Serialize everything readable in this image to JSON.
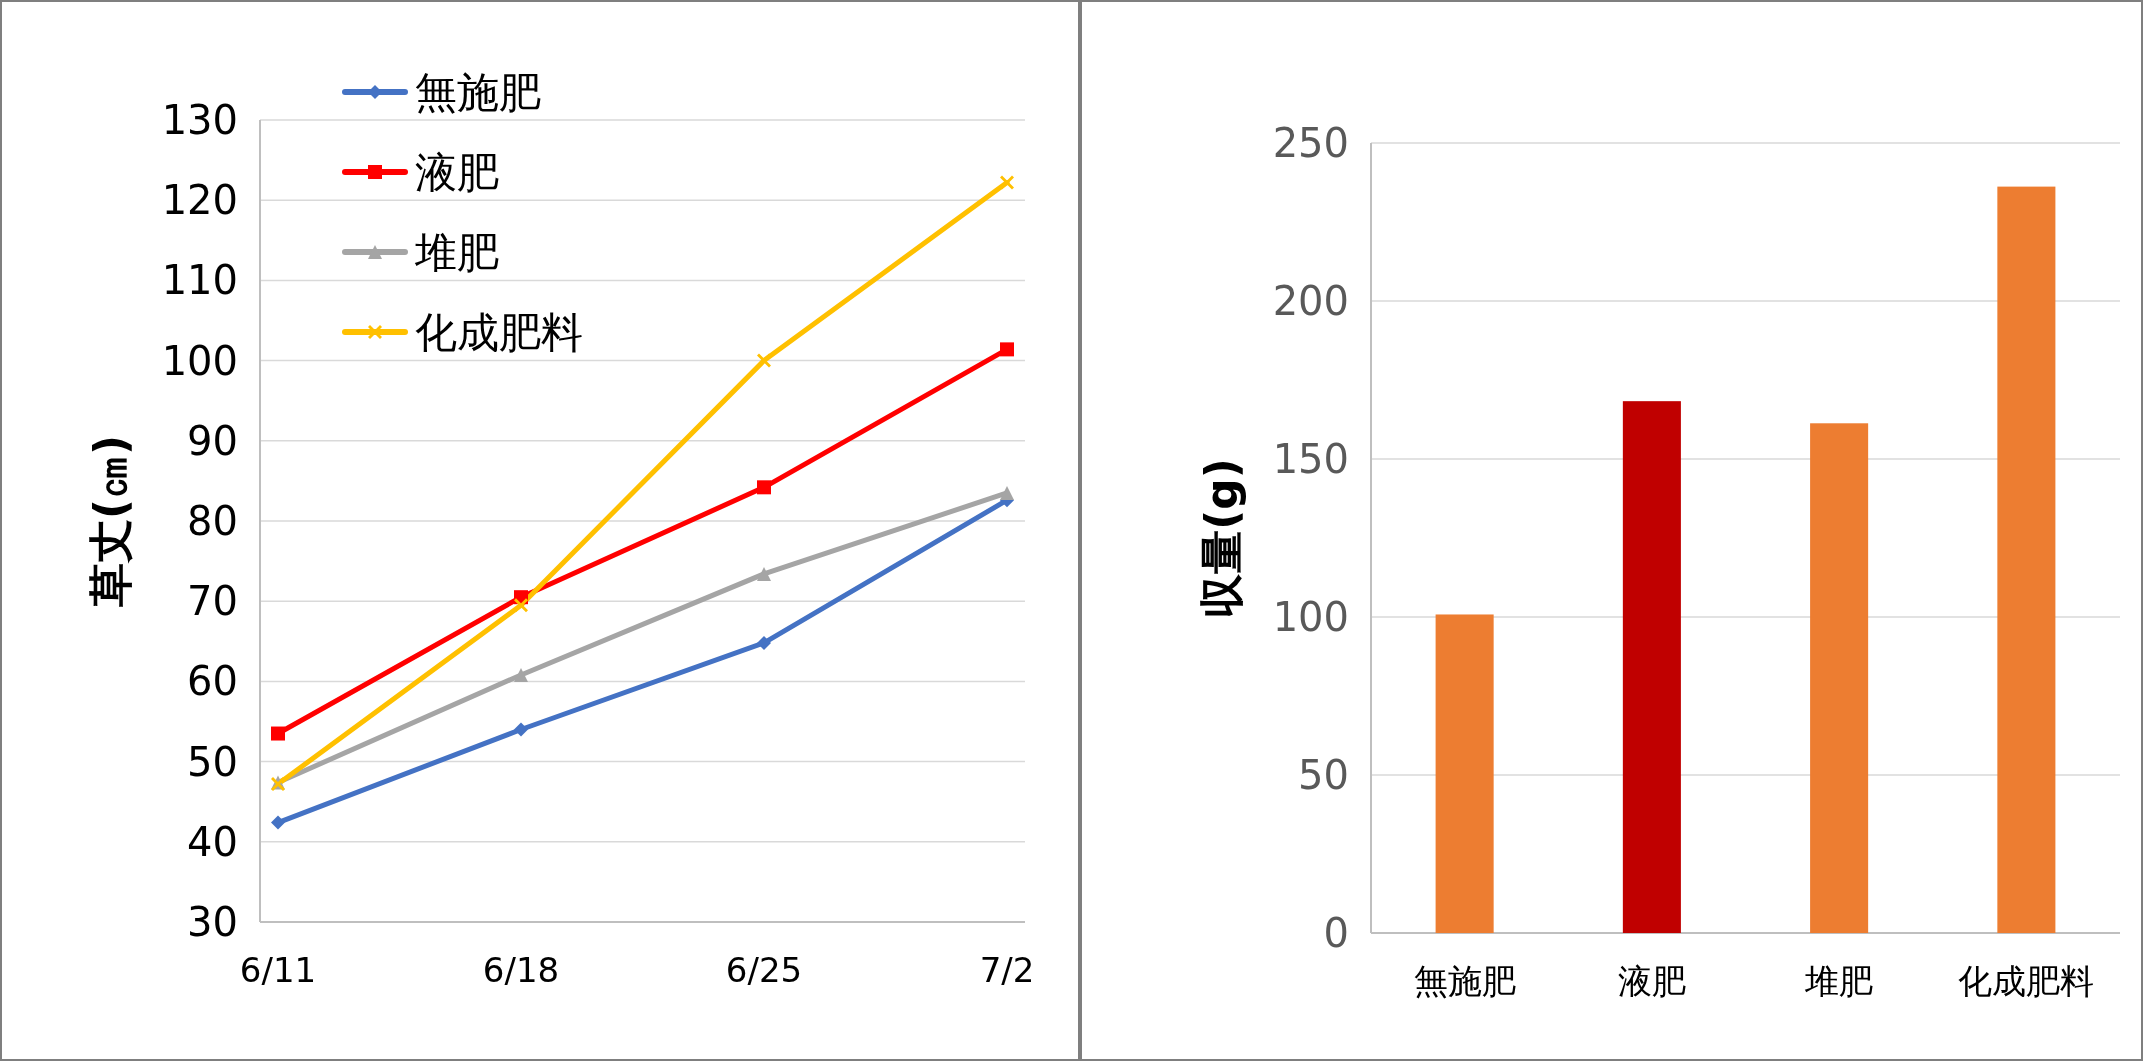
{
  "chart_data": [
    {
      "type": "line",
      "ylabel": "草丈(㎝)",
      "categories": [
        "6/11",
        "6/18",
        "6/25",
        "7/2"
      ],
      "ylim": [
        30,
        130
      ],
      "yticks": [
        30,
        40,
        50,
        60,
        70,
        80,
        90,
        100,
        110,
        120,
        130
      ],
      "grid": "y",
      "legend": "top left",
      "series": [
        {
          "name": "無施肥",
          "color": "#4472c4",
          "marker": "diamond",
          "values": [
            42.4,
            54.0,
            64.8,
            82.6
          ]
        },
        {
          "name": "液肥",
          "color": "#ff0000",
          "marker": "square",
          "values": [
            53.5,
            70.5,
            84.2,
            101.4
          ]
        },
        {
          "name": "堆肥",
          "color": "#a5a5a5",
          "marker": "triangle",
          "values": [
            47.4,
            60.8,
            73.4,
            83.5
          ]
        },
        {
          "name": "化成肥料",
          "color": "#ffc000",
          "marker": "cross",
          "values": [
            47.2,
            69.5,
            100.0,
            122.2
          ]
        }
      ]
    },
    {
      "type": "bar",
      "ylabel": "収量(g)",
      "categories": [
        "無施肥",
        "液肥",
        "堆肥",
        "化成肥料"
      ],
      "values": [
        100.8,
        168.3,
        161.3,
        236.2
      ],
      "colors": [
        "#ed7d31",
        "#c00000",
        "#ed7d31",
        "#ed7d31"
      ],
      "ylim": [
        0,
        250
      ],
      "yticks": [
        0,
        50,
        100,
        150,
        200,
        250
      ],
      "grid": "y"
    }
  ]
}
